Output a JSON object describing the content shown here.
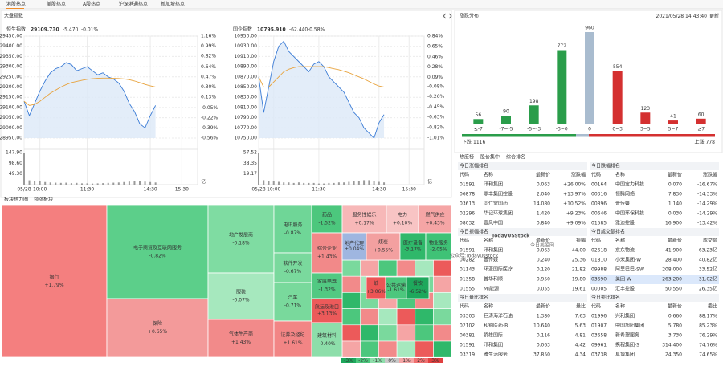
{
  "tabs": [
    "港股热点",
    "美股热点",
    "A股热点",
    "沪深港通热点",
    "新加坡热点"
  ],
  "index": {
    "title": "大盘指数",
    "charts": [
      {
        "type": "line",
        "name": "恒生指数",
        "price": "29109.730",
        "change": "-5.470",
        "pct": "-0.01%",
        "x": [
          0,
          10,
          20,
          30,
          40,
          50,
          60,
          70,
          80,
          90,
          100,
          110,
          120,
          130,
          140,
          150,
          160,
          170,
          180,
          190,
          200,
          210,
          220,
          230,
          240,
          250
        ],
        "xlim": [
          0,
          330
        ],
        "xticks": [
          {
            "value": 0,
            "label": "05/28"
          },
          {
            "value": 30,
            "label": "10:00"
          },
          {
            "value": 120,
            "label": "11:30"
          },
          {
            "value": 240,
            "label": "14:30"
          },
          {
            "value": 300,
            "label": "15:30"
          }
        ],
        "ylim": [
          28950,
          29450
        ],
        "yticks": [
          {
            "value": 29450,
            "label": "29450.00"
          },
          {
            "value": 29400,
            "label": "29400.00"
          },
          {
            "value": 29350,
            "label": "29350.00"
          },
          {
            "value": 29300,
            "label": "29300.00"
          },
          {
            "value": 29250,
            "label": "29250.00"
          },
          {
            "value": 29200,
            "label": "29200.00"
          },
          {
            "value": 29150,
            "label": "29150.00"
          },
          {
            "value": 29100,
            "label": "29100.00"
          },
          {
            "value": 29050,
            "label": "29050.00"
          },
          {
            "value": 29000,
            "label": "29000.00"
          },
          {
            "value": 28950,
            "label": "28950.00"
          }
        ],
        "y2lim": [
          -0.56,
          1.16
        ],
        "y2ticks": [
          {
            "value": 1.16,
            "label": "1.16%"
          },
          {
            "value": 0.99,
            "label": "0.99%"
          },
          {
            "value": 0.82,
            "label": "0.82%"
          },
          {
            "value": 0.64,
            "label": "0.64%"
          },
          {
            "value": 0.47,
            "label": "0.47%"
          },
          {
            "value": 0.3,
            "label": "0.30%"
          },
          {
            "value": 0.13,
            "label": "0.13%"
          },
          {
            "value": -0.05,
            "label": "-0.05%"
          },
          {
            "value": -0.22,
            "label": "-0.22%"
          },
          {
            "value": -0.39,
            "label": "-0.39%"
          },
          {
            "value": -0.56,
            "label": "-0.56%"
          }
        ],
        "series": [
          {
            "color": "#3a7bd5",
            "values": [
              29130,
              29060,
              29120,
              29180,
              29230,
              29270,
              29290,
              29300,
              29320,
              29310,
              29280,
              29290,
              29300,
              29280,
              29260,
              29270,
              29250,
              29240,
              29220,
              29180,
              29120,
              29080,
              29020,
              29000,
              29060,
              29110
            ]
          },
          {
            "color": "#e8a33d",
            "values": [
              29130,
              29110,
              29115,
              29130,
              29150,
              29170,
              29185,
              29200,
              29212,
              29222,
              29228,
              29233,
              29238,
              29241,
              29243,
              29244,
              29244,
              29243,
              29242,
              29240,
              29236,
              29230,
              29222,
              29213,
              29206,
              29200
            ]
          }
        ],
        "volume": {
          "values": [
            147.9,
            20,
            15,
            18,
            12,
            10,
            9,
            8,
            9,
            7,
            8,
            6,
            6,
            5,
            6,
            7,
            8,
            9,
            10,
            12,
            14,
            16,
            18,
            14,
            12,
            10
          ],
          "ylim": [
            0,
            147.9
          ],
          "yticks": [
            {
              "value": 147.9,
              "label": "147.90"
            },
            {
              "value": 98.6,
              "label": "98.60"
            },
            {
              "value": 49.3,
              "label": "49.30"
            }
          ],
          "unit": "亿"
        }
      },
      {
        "type": "line",
        "name": "国企指数",
        "price": "10795.910",
        "change": "-62.440",
        "pct": "-0.58%",
        "x": [
          0,
          10,
          20,
          30,
          40,
          50,
          60,
          70,
          80,
          90,
          100,
          110,
          120,
          130,
          140,
          150,
          160,
          170,
          180,
          190,
          200,
          210,
          220,
          230,
          240,
          250
        ],
        "xlim": [
          0,
          330
        ],
        "xticks": [
          {
            "value": 0,
            "label": "05/28"
          },
          {
            "value": 30,
            "label": "10:00"
          },
          {
            "value": 120,
            "label": "11:30"
          },
          {
            "value": 240,
            "label": "14:30"
          },
          {
            "value": 300,
            "label": "15:30"
          }
        ],
        "ylim": [
          10750,
          10950
        ],
        "yticks": [
          {
            "value": 10950,
            "label": "10950.00"
          },
          {
            "value": 10930,
            "label": "10930.00"
          },
          {
            "value": 10910,
            "label": "10910.00"
          },
          {
            "value": 10890,
            "label": "10890.00"
          },
          {
            "value": 10870,
            "label": "10870.00"
          },
          {
            "value": 10850,
            "label": "10850.00"
          },
          {
            "value": 10830,
            "label": "10830.00"
          },
          {
            "value": 10810,
            "label": "10810.00"
          },
          {
            "value": 10790,
            "label": "10790.00"
          },
          {
            "value": 10770,
            "label": "10770.00"
          },
          {
            "value": 10750,
            "label": "10750.00"
          }
        ],
        "y2lim": [
          -1.01,
          0.84
        ],
        "y2ticks": [
          {
            "value": 0.84,
            "label": "0.84%"
          },
          {
            "value": 0.65,
            "label": "0.65%"
          },
          {
            "value": 0.46,
            "label": "0.46%"
          },
          {
            "value": 0.28,
            "label": "0.28%"
          },
          {
            "value": 0.09,
            "label": "0.09%"
          },
          {
            "value": -0.08,
            "label": "-0.08%"
          },
          {
            "value": -0.26,
            "label": "-0.26%"
          },
          {
            "value": -0.45,
            "label": "-0.45%"
          },
          {
            "value": -0.63,
            "label": "-0.63%"
          },
          {
            "value": -0.82,
            "label": "-0.82%"
          },
          {
            "value": -1.01,
            "label": "-1.01%"
          }
        ],
        "series": [
          {
            "color": "#3a7bd5",
            "values": [
              10870,
              10800,
              10850,
              10900,
              10930,
              10940,
              10920,
              10910,
              10900,
              10890,
              10880,
              10895,
              10900,
              10890,
              10870,
              10860,
              10850,
              10840,
              10820,
              10800,
              10790,
              10770,
              10760,
              10750,
              10780,
              10796
            ]
          },
          {
            "color": "#e8a33d",
            "values": [
              10870,
              10850,
              10850,
              10860,
              10870,
              10880,
              10885,
              10888,
              10890,
              10890,
              10890,
              10890,
              10890,
              10890,
              10888,
              10886,
              10884,
              10881,
              10878,
              10874,
              10870,
              10866,
              10861,
              10856,
              10852,
              10850
            ]
          }
        ],
        "volume": {
          "values": [
            57.52,
            8,
            6,
            7,
            5,
            4,
            4,
            3,
            4,
            3,
            3,
            3,
            2,
            2,
            3,
            3,
            4,
            4,
            5,
            6,
            7,
            8,
            8,
            6,
            5,
            4
          ],
          "ylim": [
            0,
            57.52
          ],
          "yticks": [
            {
              "value": 57.52,
              "label": "57.52"
            },
            {
              "value": 38.35,
              "label": "38.35"
            },
            {
              "value": 19.17,
              "label": "19.17"
            }
          ],
          "unit": "亿"
        }
      }
    ]
  },
  "sector": {
    "tabs": [
      "板块热力图",
      "领涨板块"
    ],
    "blocks": [
      {
        "name": "银行",
        "change": "+1.79%",
        "color": "#f47f7f"
      },
      {
        "name": "电子商贸及互联网服务",
        "change": "-0.82%",
        "color": "#5ccf8a"
      },
      {
        "name": "保险",
        "change": "+0.65%",
        "color": "#f39a9a"
      },
      {
        "name": "地产发展商",
        "change": "-0.18%",
        "color": "#7fdca2"
      },
      {
        "name": "服装",
        "change": "-0.07%",
        "color": "#a6e8be"
      },
      {
        "name": "气体生产商",
        "change": "+1.43%",
        "color": "#f28a8a"
      },
      {
        "name": "电讯服务",
        "change": "-0.87%",
        "color": "#6fd697"
      },
      {
        "name": "软件开发",
        "change": "-0.67%",
        "color": "#7ad99d"
      },
      {
        "name": "汽车",
        "change": "-0.71%",
        "color": "#79d99c"
      },
      {
        "name": "证券及经纪",
        "change": "+1.61%",
        "color": "#f28585"
      },
      {
        "name": "药品",
        "change": "-1.52%",
        "color": "#4cc77d"
      },
      {
        "name": "综合企业",
        "change": "+1.43%",
        "color": "#f28989"
      },
      {
        "name": "家庭电器",
        "change": "-1.32%",
        "color": "#52c982"
      },
      {
        "name": "航运及港口",
        "change": "+3.13%",
        "color": "#ec5a5a"
      },
      {
        "name": "建筑材料",
        "change": "-0.40%",
        "color": "#8ddeaa"
      },
      {
        "name": "服务性娱乐",
        "change": "+0.17%",
        "color": "#f7b8b8"
      },
      {
        "name": "电力",
        "change": "+0.10%",
        "color": "#f8c4c4"
      },
      {
        "name": "燃气供应",
        "change": "+0.43%",
        "color": "#f5a5a5"
      },
      {
        "name": "地产代理",
        "change": "+0.04%",
        "color": "#9fb6e0"
      },
      {
        "name": "煤炭",
        "change": "+0.55%",
        "color": "#f3a0a0"
      },
      {
        "name": "医疗设备",
        "change": "-3.17%",
        "color": "#2fb86a"
      },
      {
        "name": "物业服务",
        "change": "-2.05%",
        "color": "#3fc276"
      },
      {
        "name": "纸",
        "change": "+3.06%",
        "color": "#ec5555"
      },
      {
        "name": "公共运输",
        "change": "-1.61%",
        "color": "#4cc77d"
      },
      {
        "name": "餐饮",
        "change": "-6.52%",
        "color": "#1ea85c"
      }
    ],
    "legend": [
      "-3%",
      "-2%",
      "-1%",
      "0%",
      "1%",
      "2%",
      "3%"
    ],
    "legend_colors": [
      "#1ea85c",
      "#4cc77d",
      "#8ddeaa",
      "#c8c8c8",
      "#f5a5a5",
      "#f07070",
      "#e04040"
    ]
  },
  "distribution": {
    "type": "bar",
    "title": "涨跌分布",
    "updated": "2021/05/28 14:43:40",
    "update_label": "更新",
    "categories": [
      "≤-7",
      "-7~-5",
      "-5~-3",
      "-3~0",
      "0",
      "0~3",
      "3~5",
      "5~7",
      "≥7"
    ],
    "values": [
      56,
      90,
      198,
      772,
      960,
      554,
      123,
      41,
      60
    ],
    "colors": [
      "#2a9d4a",
      "#2a9d4a",
      "#2a9d4a",
      "#2a9d4a",
      "#a9bccf",
      "#d43030",
      "#d43030",
      "#d43030",
      "#d43030"
    ],
    "fall": {
      "label": "下跌",
      "count": 1116
    },
    "rise": {
      "label": "上涨",
      "count": 778
    }
  },
  "rank_tabs": [
    "热度榜",
    "股价集中",
    "综合排名"
  ],
  "tables": [
    {
      "title": "今日涨幅排名",
      "columns": [
        "代码",
        "名称",
        "最新价",
        "涨跌幅"
      ],
      "color_last": true,
      "colors": [
        "#e03030",
        "#e03030",
        "#e03030",
        "#e03030",
        "#e03030"
      ],
      "rows": [
        [
          "01591",
          "汛和集团",
          "0.063",
          "+26.00%"
        ],
        [
          "06878",
          "鼎丰集团控股",
          "2.040",
          "+13.97%"
        ],
        [
          "03613",
          "同仁堂国药",
          "14.080",
          "+10.52%"
        ],
        [
          "02296",
          "华记环球集团",
          "1.420",
          "+9.23%"
        ],
        [
          "08032",
          "壹风中国",
          "0.840",
          "+9.09%"
        ]
      ]
    },
    {
      "title": "今日跌幅排名",
      "columns": [
        "代码",
        "名称",
        "最新价",
        "涨跌幅"
      ],
      "color_last": true,
      "colors": [
        "#1c9a48",
        "#1c9a48",
        "#1c9a48",
        "#1c9a48",
        "#1c9a48"
      ],
      "rows": [
        [
          "00164",
          "中国宝力科技",
          "0.070",
          "-16.67%"
        ],
        [
          "00316",
          "恒腾网络",
          "7.830",
          "-14.33%"
        ],
        [
          "00896",
          "壹传媒",
          "1.140",
          "-14.29%"
        ],
        [
          "00646",
          "中国环保科技",
          "0.030",
          "-14.29%"
        ],
        [
          "01585",
          "雅迪控股",
          "16.900",
          "-13.42%"
        ]
      ]
    },
    {
      "title": "今日振幅排名",
      "columns": [
        "代码",
        "名称",
        "最新价",
        "振幅"
      ],
      "color_last": false,
      "colors": [
        "#e03030",
        "#1c9a48",
        "#e03030",
        "#e03030",
        "#1c9a48"
      ],
      "rows": [
        [
          "01591",
          "汛和集团",
          "0.063",
          "44.00"
        ],
        [
          "00282",
          "壹传媒",
          "0.240",
          "25.36"
        ],
        [
          "01143",
          "环亚国际医疗",
          "0.120",
          "21.82"
        ],
        [
          "01358",
          "普华和顺",
          "0.950",
          "19.80"
        ],
        [
          "01555",
          "MI能源",
          "0.055",
          "19.61"
        ]
      ]
    },
    {
      "title": "今日成交额排名",
      "columns": [
        "代码",
        "名称",
        "最新价",
        "成交额"
      ],
      "color_last": false,
      "colors": [
        "#e03030",
        "#1c9a48",
        "#1c9a48",
        "#1c9a48",
        "#e03030"
      ],
      "rows": [
        [
          "02618",
          "京东物流",
          "41.900",
          "63.23亿"
        ],
        [
          "01810",
          "小米集团-W",
          "28.400",
          "40.82亿"
        ],
        [
          "09988",
          "阿里巴巴-SW",
          "208.000",
          "33.52亿"
        ],
        [
          "03690",
          "美团-W",
          "263.200",
          "31.02亿"
        ],
        [
          "00005",
          "汇丰控股",
          "50.550",
          "26.35亿"
        ]
      ]
    },
    {
      "title": "今日量比排名",
      "columns": [
        "代码",
        "名称",
        "最新价",
        "量比"
      ],
      "color_last": false,
      "colors": [
        "#e03030",
        "#e03030",
        "#1c9a48",
        "#e03030",
        "#e03030"
      ],
      "rows": [
        [
          "03303",
          "巨涛海洋石油",
          "1.380",
          "7.63"
        ],
        [
          "02102",
          "和铂医药-B",
          "10.640",
          "5.63"
        ],
        [
          "00381",
          "侨雄国际",
          "0.116",
          "4.81"
        ],
        [
          "01591",
          "汛和集团",
          "0.063",
          "4.42"
        ],
        [
          "03319",
          "雅生活服务",
          "37.850",
          "4.34"
        ]
      ]
    },
    {
      "title": "今日委比排名",
      "columns": [
        "代码",
        "名称",
        "最新价",
        "委比"
      ],
      "color_last": false,
      "colors": [
        "#e03030",
        "#e03030",
        "#1c9a48",
        "#1c9a48",
        "#1c9a48"
      ],
      "rows": [
        [
          "01996",
          "兴利集团",
          "0.660",
          "88.17%"
        ],
        [
          "01907",
          "中国旭阳集团",
          "5.780",
          "85.23%"
        ],
        [
          "03658",
          "新希望服务",
          "3.730",
          "76.29%"
        ],
        [
          "09961",
          "携程集团-S",
          "314.400",
          "74.76%"
        ],
        [
          "03738",
          "阜博集团",
          "24.350",
          "74.65%"
        ]
      ]
    }
  ],
  "watermark": [
    "TodayUSStock",
    "今日美股网",
    "公众号:Todayusstock"
  ]
}
